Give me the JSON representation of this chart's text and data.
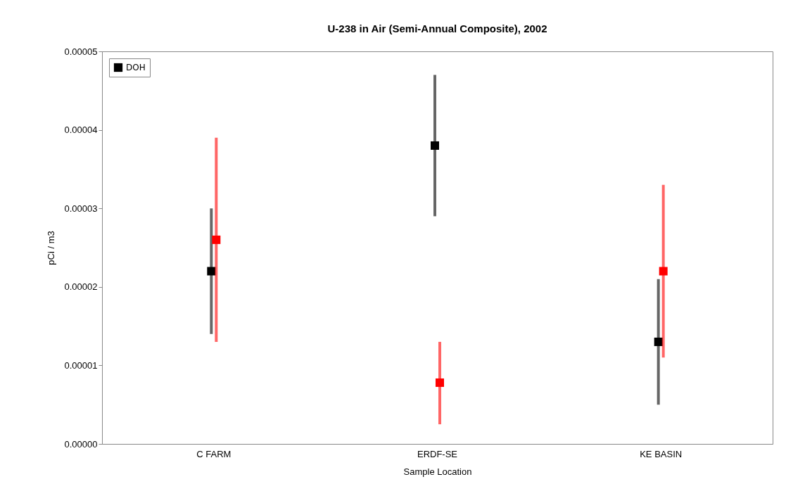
{
  "chart_data": {
    "type": "scatter",
    "title": "U-238 in Air (Semi-Annual Composite), 2002",
    "xlabel": "Sample Location",
    "ylabel": "pCi / m3",
    "categories": [
      "C FARM",
      "ERDF-SE",
      "KE BASIN"
    ],
    "series": [
      {
        "name": "DOH",
        "color": "#000000",
        "values": [
          2.2e-05,
          3.8e-05,
          1.3e-05
        ],
        "errors": [
          [
            1.4e-05,
            3e-05
          ],
          [
            2.9e-05,
            4.7e-05
          ],
          [
            5e-06,
            2.1e-05
          ]
        ]
      },
      {
        "color": "#ff0000",
        "values": [
          2.6e-05,
          7.8e-06,
          2.2e-05
        ],
        "errors": [
          [
            1.3e-05,
            3.9e-05
          ],
          [
            2.5e-06,
            1.3e-05
          ],
          [
            1.1e-05,
            3.3e-05
          ]
        ]
      }
    ],
    "ylim": [
      0,
      5e-05
    ],
    "yticks": [
      {
        "value": 0,
        "label": "0.00000"
      },
      {
        "value": 1e-05,
        "label": "0.00001"
      },
      {
        "value": 2e-05,
        "label": "0.00002"
      },
      {
        "value": 3e-05,
        "label": "0.00003"
      },
      {
        "value": 4e-05,
        "label": "0.00004"
      },
      {
        "value": 5e-05,
        "label": "0.00005"
      }
    ],
    "marker": "square",
    "legend": "top left",
    "grid": false
  }
}
